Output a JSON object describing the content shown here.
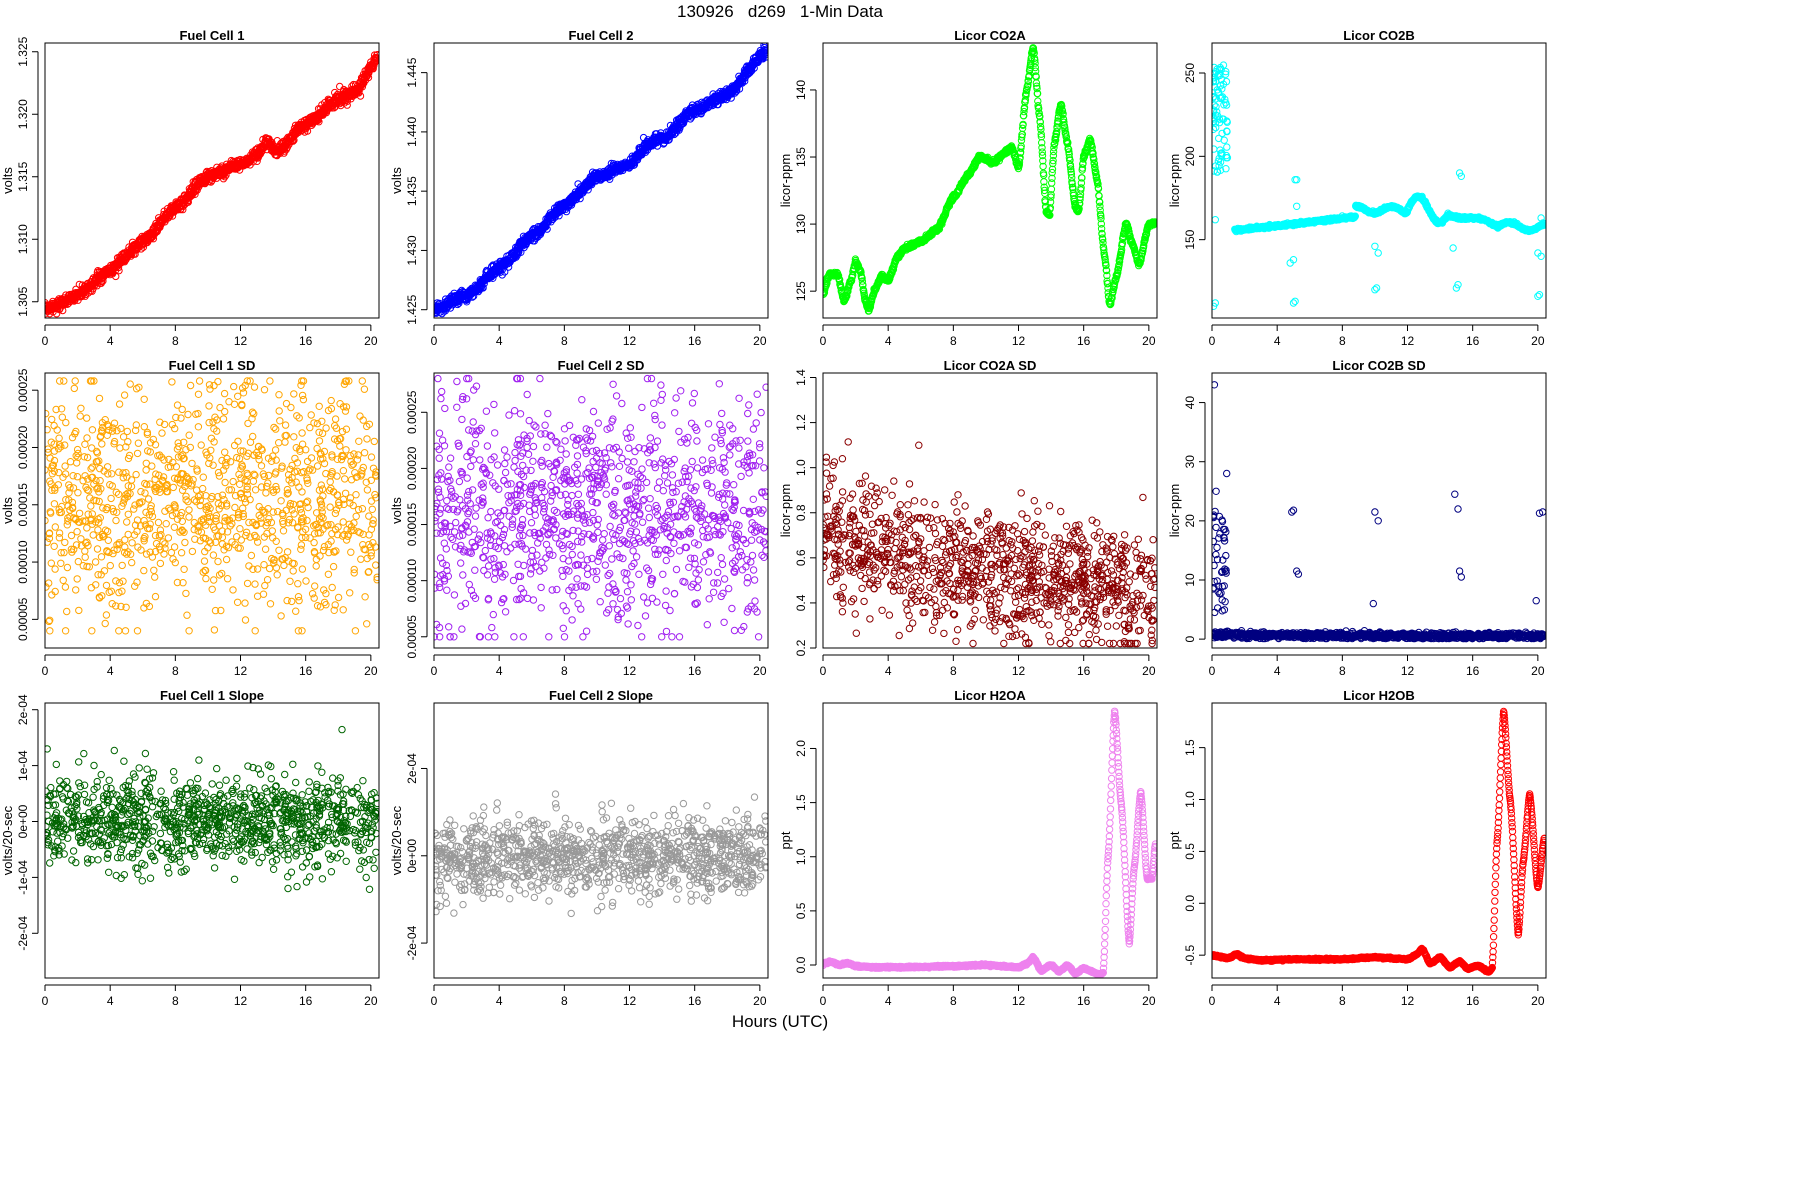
{
  "figure": {
    "title": "130926   d269   1-Min Data",
    "xlabel": "Hours (UTC)"
  },
  "chart_data": [
    {
      "id": "fc1",
      "type": "scatter",
      "title": "Fuel Cell 1",
      "ylabel": "volts",
      "color": "#ff0000",
      "xlim": [
        0,
        20.5
      ],
      "ylim": [
        1.3037,
        1.3257
      ],
      "xticks": [
        0,
        4,
        8,
        12,
        16,
        20
      ],
      "yticks": [
        1.305,
        1.31,
        1.315,
        1.32,
        1.325
      ],
      "ytick_labels": [
        "1.305",
        "1.310",
        "1.315",
        "1.320",
        "1.325"
      ],
      "gen": {
        "kind": "curve",
        "pts": [
          [
            0,
            1.3043
          ],
          [
            2,
            1.3055
          ],
          [
            4,
            1.3075
          ],
          [
            6,
            1.3098
          ],
          [
            8,
            1.3125
          ],
          [
            10,
            1.315
          ],
          [
            12,
            1.316
          ],
          [
            13,
            1.3168
          ],
          [
            13.6,
            1.3178
          ],
          [
            14.2,
            1.317
          ],
          [
            16,
            1.3192
          ],
          [
            18,
            1.3212
          ],
          [
            19,
            1.3218
          ],
          [
            20.4,
            1.3245
          ]
        ],
        "noise": 0.00025,
        "n": 1200
      }
    },
    {
      "id": "fc2",
      "type": "scatter",
      "title": "Fuel Cell 2",
      "ylabel": "volts",
      "color": "#0000ff",
      "xlim": [
        0,
        20.5
      ],
      "ylim": [
        1.4243,
        1.4475
      ],
      "xticks": [
        0,
        4,
        8,
        12,
        16,
        20
      ],
      "yticks": [
        1.425,
        1.43,
        1.435,
        1.44,
        1.445
      ],
      "ytick_labels": [
        "1.425",
        "1.430",
        "1.435",
        "1.440",
        "1.445"
      ],
      "gen": {
        "kind": "curve",
        "pts": [
          [
            0,
            1.425
          ],
          [
            2,
            1.4262
          ],
          [
            4,
            1.4285
          ],
          [
            6,
            1.4312
          ],
          [
            8,
            1.4338
          ],
          [
            10,
            1.4362
          ],
          [
            12,
            1.4372
          ],
          [
            13,
            1.4388
          ],
          [
            14,
            1.4395
          ],
          [
            16,
            1.4418
          ],
          [
            18,
            1.4432
          ],
          [
            20.4,
            1.4468
          ]
        ],
        "noise": 0.00025,
        "n": 1200
      }
    },
    {
      "id": "co2a",
      "type": "scatter",
      "title": "Licor CO2A",
      "ylabel": "licor-ppm",
      "color": "#00ff00",
      "xlim": [
        0,
        20.5
      ],
      "ylim": [
        123,
        143.5
      ],
      "xticks": [
        0,
        4,
        8,
        12,
        16,
        20
      ],
      "yticks": [
        125,
        130,
        135,
        140
      ],
      "ytick_labels": [
        "125",
        "130",
        "135",
        "140"
      ],
      "gen": {
        "kind": "curve",
        "pts": [
          [
            0,
            124.8
          ],
          [
            0.4,
            126.3
          ],
          [
            0.9,
            126.2
          ],
          [
            1.3,
            124.3
          ],
          [
            1.7,
            125.7
          ],
          [
            2,
            127.2
          ],
          [
            2.3,
            126.5
          ],
          [
            2.6,
            124.3
          ],
          [
            2.8,
            123.6
          ],
          [
            3.2,
            125.2
          ],
          [
            3.6,
            126.1
          ],
          [
            4,
            125.8
          ],
          [
            4.6,
            127.6
          ],
          [
            5,
            128.2
          ],
          [
            6,
            128.7
          ],
          [
            7,
            129.6
          ],
          [
            8,
            132
          ],
          [
            9,
            133.8
          ],
          [
            9.6,
            135
          ],
          [
            10.5,
            134.6
          ],
          [
            11,
            135.2
          ],
          [
            11.6,
            135.7
          ],
          [
            12,
            134.2
          ],
          [
            12.5,
            140
          ],
          [
            12.9,
            143.2
          ],
          [
            13.3,
            138
          ],
          [
            13.7,
            131
          ],
          [
            13.9,
            130.6
          ],
          [
            14.2,
            136
          ],
          [
            14.6,
            139
          ],
          [
            15,
            136
          ],
          [
            15.5,
            131.2
          ],
          [
            15.7,
            131
          ],
          [
            16,
            135
          ],
          [
            16.4,
            136.3
          ],
          [
            16.8,
            133.5
          ],
          [
            17.3,
            127.5
          ],
          [
            17.6,
            124
          ],
          [
            18,
            126
          ],
          [
            18.6,
            130
          ],
          [
            19,
            128.5
          ],
          [
            19.4,
            127
          ],
          [
            20,
            130
          ],
          [
            20.4,
            130.1
          ]
        ],
        "noise": 0.08,
        "n": 1200
      }
    },
    {
      "id": "co2b",
      "type": "scatter",
      "title": "Licor CO2B",
      "ylabel": "licor-ppm",
      "color": "#00ffff",
      "xlim": [
        0,
        20.5
      ],
      "ylim": [
        103,
        268
      ],
      "xticks": [
        0,
        4,
        8,
        12,
        16,
        20
      ],
      "yticks": [
        150,
        200,
        250
      ],
      "ytick_labels": [
        "150",
        "200",
        "250"
      ],
      "gen": {
        "kind": "co2b"
      }
    },
    {
      "id": "fc1sd",
      "type": "scatter",
      "title": "Fuel Cell 1 SD",
      "ylabel": "volts",
      "color": "#ffa500",
      "xlim": [
        0,
        20.5
      ],
      "ylim": [
        2.5e-05,
        0.000265
      ],
      "xticks": [
        0,
        4,
        8,
        12,
        16,
        20
      ],
      "yticks": [
        5e-05,
        0.0001,
        0.00015,
        0.0002,
        0.00025
      ],
      "ytick_labels": [
        "0.00005",
        "0.00010",
        "0.00015",
        "0.00020",
        "0.00025"
      ],
      "gen": {
        "kind": "cloud",
        "center": 0.000155,
        "spread": 4.8e-05,
        "min": 4e-05,
        "max": 0.000258,
        "n": 1100
      }
    },
    {
      "id": "fc2sd",
      "type": "scatter",
      "title": "Fuel Cell 2 SD",
      "ylabel": "volts",
      "color": "#a020f0",
      "xlim": [
        0,
        20.5
      ],
      "ylim": [
        4e-05,
        0.000285
      ],
      "xticks": [
        0,
        4,
        8,
        12,
        16,
        20
      ],
      "yticks": [
        5e-05,
        0.0001,
        0.00015,
        0.0002,
        0.00025
      ],
      "ytick_labels": [
        "0.00005",
        "0.00010",
        "0.00015",
        "0.00020",
        "0.00025"
      ],
      "gen": {
        "kind": "cloud",
        "center": 0.000162,
        "spread": 5e-05,
        "min": 5e-05,
        "max": 0.00028,
        "n": 1100
      }
    },
    {
      "id": "co2asd",
      "type": "scatter",
      "title": "Licor CO2A SD",
      "ylabel": "licor-ppm",
      "color": "#8b0000",
      "xlim": [
        0,
        20.5
      ],
      "ylim": [
        0.2,
        1.42
      ],
      "xticks": [
        0,
        4,
        8,
        12,
        16,
        20
      ],
      "yticks": [
        0.2,
        0.4,
        0.6,
        0.8,
        1.0,
        1.2,
        1.4
      ],
      "ytick_labels": [
        "0.2",
        "0.4",
        "0.6",
        "0.8",
        "1.0",
        "1.2",
        "1.4"
      ],
      "gen": {
        "kind": "decay",
        "n": 1100
      }
    },
    {
      "id": "co2bsd",
      "type": "scatter",
      "title": "Licor CO2B SD",
      "ylabel": "licor-ppm",
      "color": "#000080",
      "xlim": [
        0,
        20.5
      ],
      "ylim": [
        -1.5,
        45
      ],
      "xticks": [
        0,
        4,
        8,
        12,
        16,
        20
      ],
      "yticks": [
        0,
        10,
        20,
        30,
        40
      ],
      "ytick_labels": [
        "0",
        "10",
        "20",
        "30",
        "40"
      ],
      "gen": {
        "kind": "co2bsd"
      }
    },
    {
      "id": "fc1slope",
      "type": "scatter",
      "title": "Fuel Cell 1 Slope",
      "ylabel": "volts/20-sec",
      "color": "#006400",
      "xlim": [
        0,
        20.5
      ],
      "ylim": [
        -0.00028,
        0.000212
      ],
      "xticks": [
        0,
        4,
        8,
        12,
        16,
        20
      ],
      "yticks": [
        -0.0002,
        -0.0001,
        0,
        0.0001,
        0.0002
      ],
      "ytick_labels": [
        "-2e-04",
        "-1e-04",
        "0e+00",
        "1e-04",
        "2e-04"
      ],
      "gen": {
        "kind": "cloud",
        "center": 0,
        "spread": 4.2e-05,
        "min": -0.00027,
        "max": 0.000205,
        "n": 1100
      }
    },
    {
      "id": "fc2slope",
      "type": "scatter",
      "title": "Fuel Cell 2 Slope",
      "ylabel": "volts/20-sec",
      "color": "#999999",
      "xlim": [
        0,
        20.5
      ],
      "ylim": [
        -0.00028,
        0.00035
      ],
      "xticks": [
        0,
        4,
        8,
        12,
        16,
        20
      ],
      "yticks": [
        -0.0002,
        0,
        0.0002
      ],
      "ytick_labels": [
        "-2e-04",
        "0e+00",
        "2e-04"
      ],
      "gen": {
        "kind": "cloud",
        "center": 0,
        "spread": 4.5e-05,
        "min": -0.00027,
        "max": 0.00034,
        "n": 1100
      }
    },
    {
      "id": "h2oa",
      "type": "scatter",
      "title": "Licor H2OA",
      "ylabel": "ppt",
      "color": "#ee82ee",
      "xlim": [
        0,
        20.5
      ],
      "ylim": [
        -0.12,
        2.42
      ],
      "xticks": [
        0,
        4,
        8,
        12,
        16,
        20
      ],
      "yticks": [
        0,
        0.5,
        1,
        1.5,
        2
      ],
      "ytick_labels": [
        "0.0",
        "0.5",
        "1.0",
        "1.5",
        "2.0"
      ],
      "gen": {
        "kind": "curve",
        "pts": [
          [
            0,
            0.01
          ],
          [
            0.5,
            0.03
          ],
          [
            1,
            0
          ],
          [
            1.5,
            0.02
          ],
          [
            2,
            -0.01
          ],
          [
            3,
            -0.02
          ],
          [
            5,
            -0.02
          ],
          [
            8,
            -0.01
          ],
          [
            10,
            0
          ],
          [
            12,
            -0.02
          ],
          [
            12.5,
            0.01
          ],
          [
            12.9,
            0.07
          ],
          [
            13.4,
            -0.05
          ],
          [
            14,
            0
          ],
          [
            14.5,
            -0.06
          ],
          [
            15,
            0
          ],
          [
            15.5,
            -0.08
          ],
          [
            16,
            -0.03
          ],
          [
            16.5,
            -0.06
          ],
          [
            17,
            -0.09
          ],
          [
            17.2,
            -0.07
          ],
          [
            17.5,
            1.0
          ],
          [
            17.9,
            2.35
          ],
          [
            18.3,
            1.5
          ],
          [
            18.8,
            0.2
          ],
          [
            19.1,
            0.9
          ],
          [
            19.5,
            1.6
          ],
          [
            19.9,
            0.8
          ],
          [
            20.2,
            0.8
          ],
          [
            20.4,
            1.12
          ]
        ],
        "noise": 0.004,
        "n": 1200
      }
    },
    {
      "id": "h2ob",
      "type": "scatter",
      "title": "Licor H2OB",
      "ylabel": "ppt",
      "color": "#ff0000",
      "xlim": [
        0,
        20.5
      ],
      "ylim": [
        -0.72,
        1.93
      ],
      "xticks": [
        0,
        4,
        8,
        12,
        16,
        20
      ],
      "yticks": [
        -0.5,
        0,
        0.5,
        1,
        1.5
      ],
      "ytick_labels": [
        "-0.5",
        "0.0",
        "0.5",
        "1.0",
        "1.5"
      ],
      "gen": {
        "kind": "curve",
        "pts": [
          [
            0,
            -0.5
          ],
          [
            1,
            -0.53
          ],
          [
            1.5,
            -0.49
          ],
          [
            2,
            -0.53
          ],
          [
            3,
            -0.55
          ],
          [
            5,
            -0.54
          ],
          [
            8,
            -0.54
          ],
          [
            10,
            -0.52
          ],
          [
            12,
            -0.54
          ],
          [
            12.5,
            -0.5
          ],
          [
            12.9,
            -0.44
          ],
          [
            13.4,
            -0.58
          ],
          [
            14,
            -0.52
          ],
          [
            14.6,
            -0.62
          ],
          [
            15.2,
            -0.56
          ],
          [
            15.7,
            -0.63
          ],
          [
            16.3,
            -0.6
          ],
          [
            17,
            -0.66
          ],
          [
            17.2,
            -0.62
          ],
          [
            17.5,
            0.6
          ],
          [
            17.9,
            1.85
          ],
          [
            18.3,
            1.0
          ],
          [
            18.8,
            -0.3
          ],
          [
            19.1,
            0.4
          ],
          [
            19.5,
            1.05
          ],
          [
            20,
            0.15
          ],
          [
            20.4,
            0.63
          ]
        ],
        "noise": 0.004,
        "n": 1200
      }
    }
  ]
}
